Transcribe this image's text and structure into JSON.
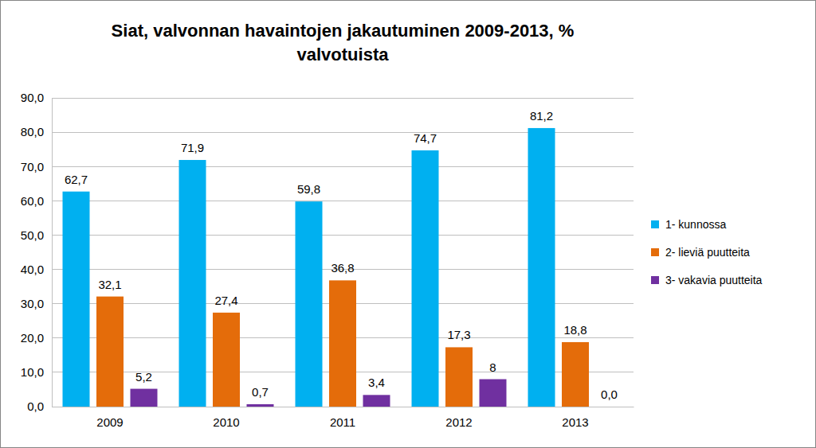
{
  "chart_data": {
    "type": "bar",
    "title": "Siat, valvonnan havaintojen jakautuminen 2009-2013, % valvotuista",
    "categories": [
      "2009",
      "2010",
      "2011",
      "2012",
      "2013"
    ],
    "series": [
      {
        "name": "1- kunnossa",
        "color": "#00b0f0",
        "values": [
          62.7,
          71.9,
          59.8,
          74.7,
          81.2
        ],
        "value_labels": [
          "62,7",
          "71,9",
          "59,8",
          "74,7",
          "81,2"
        ]
      },
      {
        "name": "2- lieviä puutteita",
        "color": "#e46c0a",
        "values": [
          32.1,
          27.4,
          36.8,
          17.3,
          18.8
        ],
        "value_labels": [
          "32,1",
          "27,4",
          "36,8",
          "17,3",
          "18,8"
        ]
      },
      {
        "name": "3- vakavia puutteita",
        "color": "#7030a0",
        "values": [
          5.2,
          0.7,
          3.4,
          8,
          0.0
        ],
        "value_labels": [
          "5,2",
          "0,7",
          "3,4",
          "8",
          "0,0"
        ]
      }
    ],
    "ylim": [
      0,
      90
    ],
    "yticks": [
      {
        "value": 0,
        "label": "0,0"
      },
      {
        "value": 10,
        "label": "10,0"
      },
      {
        "value": 20,
        "label": "20,0"
      },
      {
        "value": 30,
        "label": "30,0"
      },
      {
        "value": 40,
        "label": "40,0"
      },
      {
        "value": 50,
        "label": "50,0"
      },
      {
        "value": 60,
        "label": "60,0"
      },
      {
        "value": 70,
        "label": "70,0"
      },
      {
        "value": 80,
        "label": "80,0"
      },
      {
        "value": 90,
        "label": "90,0"
      }
    ],
    "grid": true,
    "legend": "right",
    "data_labels": true
  }
}
